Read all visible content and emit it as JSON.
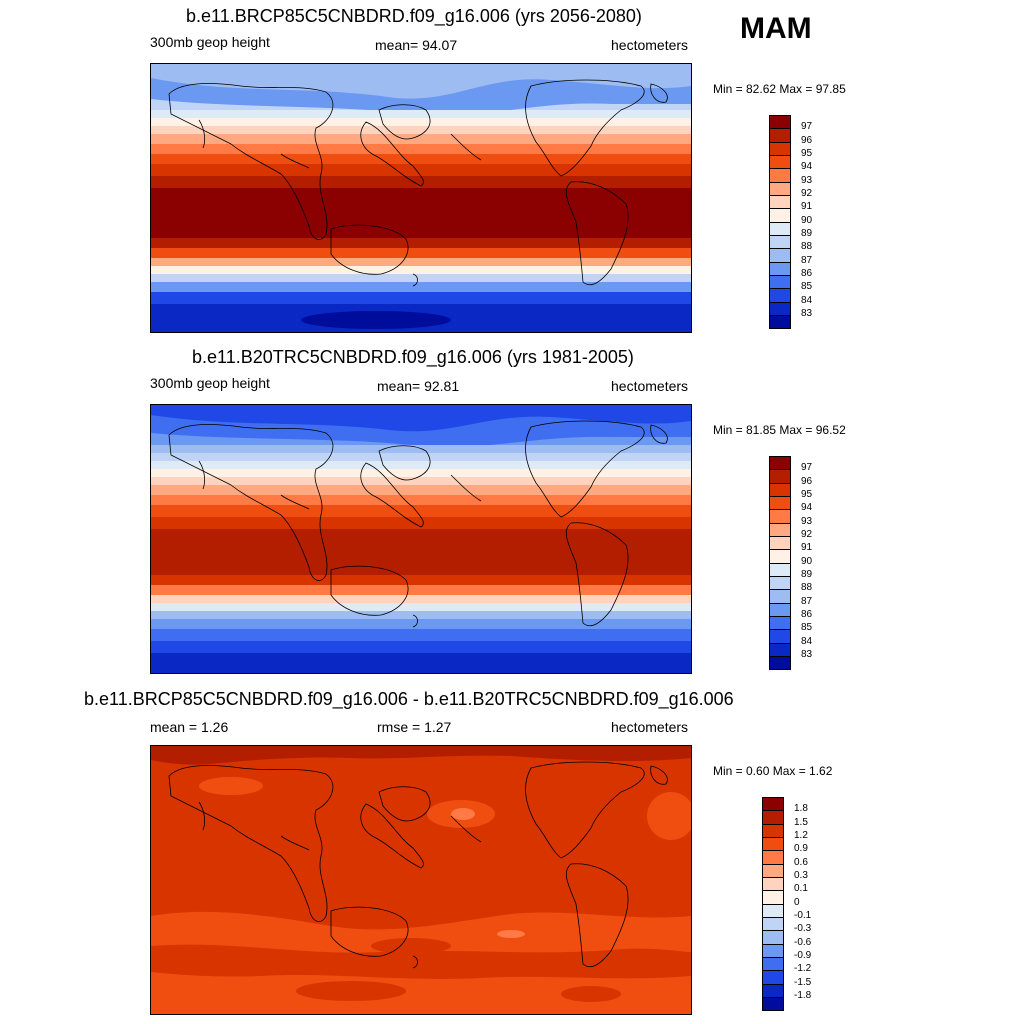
{
  "season": "MAM",
  "panels": [
    {
      "title": "b.e11.BRCP85C5CNBDRD.f09_g16.006 (yrs 2056-2080)",
      "left_label": "300mb geop height",
      "center_label": "mean=  94.07",
      "right_label": "hectometers",
      "minmax": "Min =  82.62 Max =  97.85",
      "colorbar": {
        "labels": [
          "97",
          "96",
          "95",
          "94",
          "93",
          "92",
          "91",
          "90",
          "89",
          "88",
          "87",
          "86",
          "85",
          "84",
          "83"
        ],
        "colors": [
          "#8b0000",
          "#b31e00",
          "#d83400",
          "#f04e10",
          "#ff7a45",
          "#ffa982",
          "#ffd3bd",
          "#fff1e6",
          "#deebf7",
          "#c0d4f5",
          "#9dbcf2",
          "#6b98f0",
          "#3f6ef0",
          "#1f48e6",
          "#0a28c4",
          "#000c9c"
        ]
      }
    },
    {
      "title": "b.e11.B20TRC5CNBDRD.f09_g16.006 (yrs 1981-2005)",
      "left_label": "300mb geop height",
      "center_label": "mean=  92.81",
      "right_label": "hectometers",
      "minmax": "Min =  81.85 Max =  96.52",
      "colorbar": {
        "labels": [
          "97",
          "96",
          "95",
          "94",
          "93",
          "92",
          "91",
          "90",
          "89",
          "88",
          "87",
          "86",
          "85",
          "84",
          "83"
        ],
        "colors": [
          "#8b0000",
          "#b31e00",
          "#d83400",
          "#f04e10",
          "#ff7a45",
          "#ffa982",
          "#ffd3bd",
          "#fff1e6",
          "#deebf7",
          "#c0d4f5",
          "#9dbcf2",
          "#6b98f0",
          "#3f6ef0",
          "#1f48e6",
          "#0a28c4",
          "#000c9c"
        ]
      }
    },
    {
      "title": "b.e11.BRCP85C5CNBDRD.f09_g16.006 - b.e11.B20TRC5CNBDRD.f09_g16.006",
      "left_label": "mean =   1.26",
      "center_label": "rmse =   1.27",
      "right_label": "hectometers",
      "minmax": "Min =   0.60 Max =   1.62",
      "colorbar": {
        "labels": [
          "1.8",
          "1.5",
          "1.2",
          "0.9",
          "0.6",
          "0.3",
          "0.1",
          "0",
          "-0.1",
          "-0.3",
          "-0.6",
          "-0.9",
          "-1.2",
          "-1.5",
          "-1.8"
        ],
        "colors": [
          "#8b0000",
          "#b31e00",
          "#d83400",
          "#f04e10",
          "#ff7a45",
          "#ffa982",
          "#ffd3bd",
          "#fff1e6",
          "#deebf7",
          "#c0d4f5",
          "#9dbcf2",
          "#6b98f0",
          "#3f6ef0",
          "#1f48e6",
          "#0a28c4",
          "#000c9c"
        ]
      }
    }
  ],
  "colors": {
    "dark_red": "#8b0000",
    "red": "#d83400",
    "orange": "#f04e10",
    "light_orange": "#ff7a45",
    "pale": "#fff1e6",
    "light_blue": "#9dbcf2",
    "blue": "#3f6ef0",
    "dark_blue": "#0a28c4",
    "coastline": "#000000"
  }
}
